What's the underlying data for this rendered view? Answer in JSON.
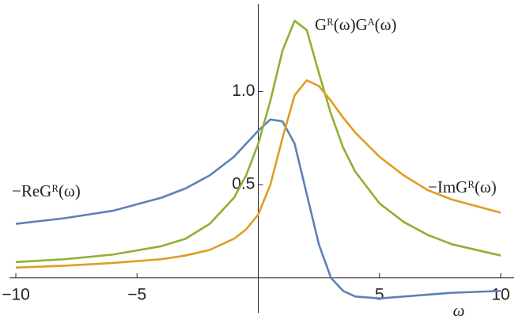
{
  "chart_data": {
    "type": "line",
    "x_label": "ω",
    "x": [
      -10,
      -8,
      -6,
      -4,
      -3,
      -2,
      -1,
      -0.5,
      0,
      0.5,
      1,
      1.5,
      2,
      2.5,
      3,
      3.5,
      4,
      5,
      6,
      7,
      8,
      10
    ],
    "series": [
      {
        "name": "−ReGᴿ(ω)",
        "color": "#5e81b5",
        "values": [
          0.29,
          0.32,
          0.36,
          0.43,
          0.48,
          0.55,
          0.65,
          0.72,
          0.79,
          0.85,
          0.84,
          0.72,
          0.45,
          0.18,
          0.0,
          -0.07,
          -0.1,
          -0.11,
          -0.1,
          -0.09,
          -0.08,
          -0.07
        ]
      },
      {
        "name": "Gᴿ(ω)Gᴬ(ω)",
        "color": "#8fb131",
        "values": [
          0.085,
          0.1,
          0.125,
          0.17,
          0.21,
          0.29,
          0.43,
          0.55,
          0.72,
          0.95,
          1.22,
          1.38,
          1.33,
          1.1,
          0.88,
          0.7,
          0.57,
          0.4,
          0.3,
          0.23,
          0.18,
          0.12
        ]
      },
      {
        "name": "−ImGᴿ(ω)",
        "color": "#e19c24",
        "values": [
          0.055,
          0.065,
          0.08,
          0.1,
          0.12,
          0.15,
          0.21,
          0.26,
          0.34,
          0.5,
          0.75,
          0.98,
          1.06,
          1.03,
          0.95,
          0.86,
          0.78,
          0.65,
          0.55,
          0.47,
          0.42,
          0.35
        ]
      }
    ],
    "xlim": [
      -10,
      10
    ],
    "ylim": [
      -0.12,
      1.47
    ],
    "xticks": [
      {
        "value": -10,
        "label": "−10"
      },
      {
        "value": -5,
        "label": "−5"
      },
      5,
      10
    ],
    "yticks": [
      0.5,
      {
        "value": 1,
        "label": "1.0"
      }
    ],
    "grid": false
  }
}
